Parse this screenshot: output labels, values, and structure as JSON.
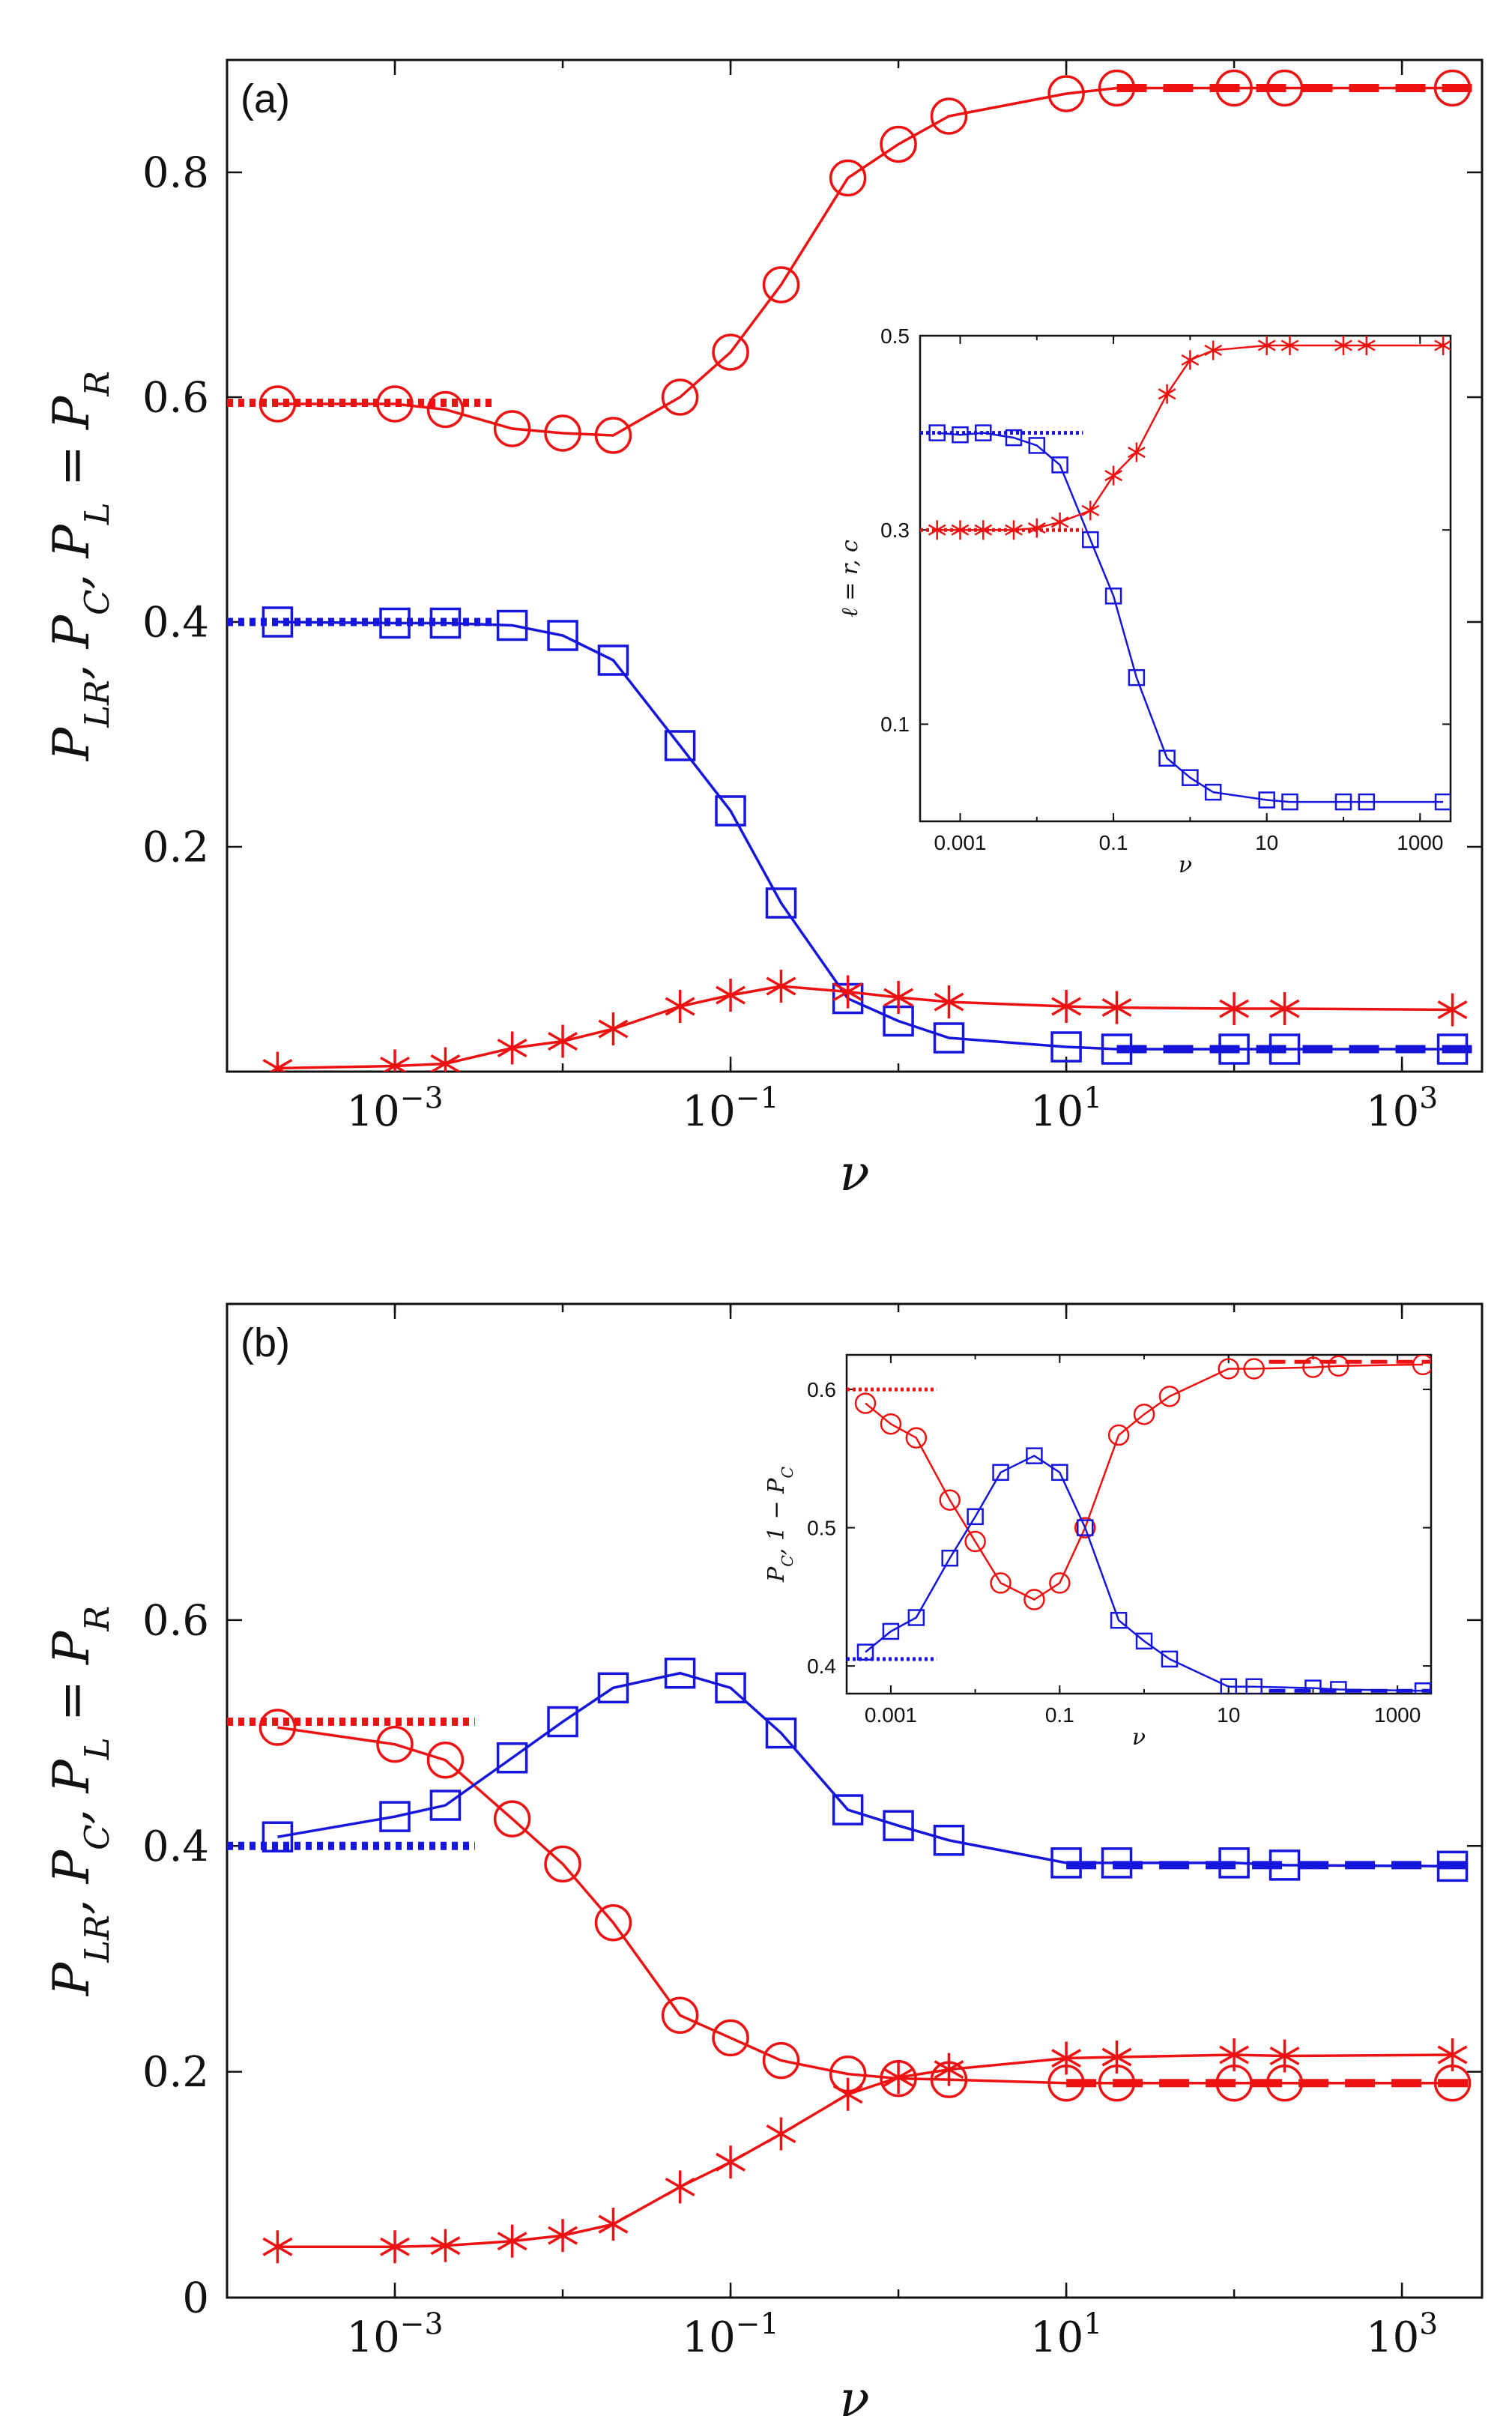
{
  "figure": {
    "background": "#ffffff"
  },
  "colors": {
    "red": "#ee1111",
    "blue": "#1515dd"
  },
  "chart_data": [
    {
      "type": "line",
      "panel_label": "(a)",
      "xlabel": "ν",
      "ylabel": "P_{LR}, P_C, P_L = P_R",
      "xscale": "log",
      "xlim": [
        0.0001,
        3000
      ],
      "ylim": [
        0,
        0.9
      ],
      "xticks": [
        0.001,
        0.1,
        10,
        1000
      ],
      "xtick_labels": [
        [
          "10",
          "−3"
        ],
        [
          "10",
          "−1"
        ],
        [
          "10",
          "1"
        ],
        [
          "10",
          "3"
        ]
      ],
      "yticks": [
        0.2,
        0.4,
        0.6,
        0.8
      ],
      "ytick_labels": [
        "0.2",
        "0.4",
        "0.6",
        "0.8"
      ],
      "series": [
        {
          "marker": "circle",
          "color": "red",
          "x": [
            0.0002,
            0.001,
            0.002,
            0.005,
            0.01,
            0.02,
            0.05,
            0.1,
            0.2,
            0.5,
            1,
            2,
            10,
            20,
            100,
            200,
            2000
          ],
          "y": [
            0.594,
            0.594,
            0.589,
            0.572,
            0.568,
            0.566,
            0.6,
            0.64,
            0.7,
            0.795,
            0.825,
            0.85,
            0.87,
            0.875,
            0.875,
            0.875,
            0.875
          ]
        },
        {
          "marker": "square",
          "color": "blue",
          "x": [
            0.0002,
            0.001,
            0.002,
            0.005,
            0.01,
            0.02,
            0.05,
            0.1,
            0.2,
            0.5,
            1,
            2,
            10,
            20,
            100,
            200,
            2000
          ],
          "y": [
            0.4,
            0.399,
            0.399,
            0.397,
            0.388,
            0.366,
            0.29,
            0.232,
            0.15,
            0.065,
            0.045,
            0.03,
            0.022,
            0.02,
            0.02,
            0.02,
            0.02
          ]
        },
        {
          "marker": "star",
          "color": "red",
          "x": [
            0.0002,
            0.001,
            0.002,
            0.005,
            0.01,
            0.02,
            0.05,
            0.1,
            0.2,
            0.5,
            1,
            2,
            10,
            20,
            100,
            200,
            2000
          ],
          "y": [
            0.003,
            0.005,
            0.007,
            0.021,
            0.027,
            0.038,
            0.058,
            0.068,
            0.076,
            0.071,
            0.066,
            0.062,
            0.058,
            0.057,
            0.056,
            0.056,
            0.055
          ]
        }
      ],
      "asymptotes": [
        {
          "color": "red",
          "style": "dotted",
          "y": 0.595,
          "x_range": [
            0.0001,
            0.004
          ]
        },
        {
          "color": "blue",
          "style": "dotted",
          "y": 0.4,
          "x_range": [
            0.0001,
            0.004
          ]
        },
        {
          "color": "red",
          "style": "dashed",
          "y": 0.875,
          "x_range": [
            20,
            3000
          ]
        },
        {
          "color": "blue",
          "style": "dashed",
          "y": 0.02,
          "x_range": [
            20,
            3000
          ]
        }
      ],
      "inset": {
        "xlabel": "ν",
        "ylabel": "ℓ = r, c",
        "xscale": "log",
        "xlim": [
          0.0003,
          2500
        ],
        "ylim": [
          0,
          0.5
        ],
        "xticks": [
          0.001,
          0.1,
          10,
          1000
        ],
        "xtick_labels": [
          "0.001",
          "0.1",
          "10",
          "1000"
        ],
        "yticks": [
          0.1,
          0.3,
          0.5
        ],
        "ytick_labels": [
          "0.1",
          "0.3",
          "0.5"
        ],
        "series": [
          {
            "marker": "square",
            "color": "blue",
            "x": [
              0.0005,
              0.001,
              0.002,
              0.005,
              0.01,
              0.02,
              0.05,
              0.1,
              0.2,
              0.5,
              1,
              2,
              10,
              20,
              100,
              200,
              2000
            ],
            "y": [
              0.4,
              0.398,
              0.4,
              0.395,
              0.387,
              0.367,
              0.29,
              0.232,
              0.148,
              0.065,
              0.045,
              0.03,
              0.022,
              0.02,
              0.02,
              0.02,
              0.02
            ]
          },
          {
            "marker": "star",
            "color": "red",
            "x": [
              0.0005,
              0.001,
              0.002,
              0.005,
              0.01,
              0.02,
              0.05,
              0.1,
              0.2,
              0.5,
              1,
              2,
              10,
              20,
              100,
              200,
              2000
            ],
            "y": [
              0.3,
              0.3,
              0.3,
              0.3,
              0.302,
              0.308,
              0.32,
              0.356,
              0.38,
              0.44,
              0.475,
              0.485,
              0.49,
              0.49,
              0.49,
              0.49,
              0.49
            ]
          }
        ],
        "asymptotes": [
          {
            "color": "blue",
            "style": "dotted",
            "y": 0.4,
            "x_range": [
              0.0003,
              0.04
            ]
          },
          {
            "color": "red",
            "style": "dotted",
            "y": 0.3,
            "x_range": [
              0.0003,
              0.04
            ]
          }
        ]
      }
    },
    {
      "type": "line",
      "panel_label": "(b)",
      "xlabel": "ν",
      "ylabel": "P_{LR}, P_C, P_L = P_R",
      "xscale": "log",
      "xlim": [
        0.0001,
        3000
      ],
      "ylim": [
        0,
        0.88
      ],
      "xticks": [
        0.001,
        0.1,
        10,
        1000
      ],
      "xtick_labels": [
        [
          "10",
          "−3"
        ],
        [
          "10",
          "−1"
        ],
        [
          "10",
          "1"
        ],
        [
          "10",
          "3"
        ]
      ],
      "yticks": [
        0,
        0.2,
        0.4,
        0.6
      ],
      "ytick_labels": [
        "0",
        "0.2",
        "0.4",
        "0.6"
      ],
      "series": [
        {
          "marker": "circle",
          "color": "red",
          "x": [
            0.0002,
            0.001,
            0.002,
            0.005,
            0.01,
            0.02,
            0.05,
            0.1,
            0.2,
            0.5,
            1,
            2,
            10,
            20,
            100,
            200,
            2000
          ],
          "y": [
            0.505,
            0.49,
            0.476,
            0.424,
            0.384,
            0.332,
            0.25,
            0.23,
            0.21,
            0.198,
            0.194,
            0.193,
            0.19,
            0.19,
            0.19,
            0.19,
            0.19
          ]
        },
        {
          "marker": "square",
          "color": "blue",
          "x": [
            0.0002,
            0.001,
            0.002,
            0.005,
            0.01,
            0.02,
            0.05,
            0.1,
            0.2,
            0.5,
            1,
            2,
            10,
            20,
            100,
            200,
            2000
          ],
          "y": [
            0.408,
            0.426,
            0.436,
            0.478,
            0.51,
            0.54,
            0.553,
            0.54,
            0.5,
            0.432,
            0.418,
            0.405,
            0.385,
            0.385,
            0.385,
            0.383,
            0.382
          ]
        },
        {
          "marker": "star",
          "color": "red",
          "x": [
            0.0002,
            0.001,
            0.002,
            0.005,
            0.01,
            0.02,
            0.05,
            0.1,
            0.2,
            0.5,
            1,
            2,
            10,
            20,
            100,
            200,
            2000
          ],
          "y": [
            0.045,
            0.045,
            0.046,
            0.05,
            0.055,
            0.065,
            0.098,
            0.12,
            0.145,
            0.18,
            0.195,
            0.202,
            0.212,
            0.213,
            0.215,
            0.214,
            0.215
          ]
        }
      ],
      "asymptotes": [
        {
          "color": "red",
          "style": "dotted",
          "y": 0.51,
          "x_range": [
            0.0001,
            0.003
          ]
        },
        {
          "color": "blue",
          "style": "dotted",
          "y": 0.4,
          "x_range": [
            0.0001,
            0.003
          ]
        },
        {
          "color": "red",
          "style": "dashed",
          "y": 0.19,
          "x_range": [
            10,
            3000
          ]
        },
        {
          "color": "blue",
          "style": "dashed",
          "y": 0.383,
          "x_range": [
            10,
            3000
          ]
        }
      ],
      "inset": {
        "xlabel": "ν",
        "ylabel": "P_C, 1 − P_C",
        "xscale": "log",
        "xlim": [
          0.0003,
          2500
        ],
        "ylim": [
          0.38,
          0.625
        ],
        "xticks": [
          0.001,
          0.1,
          10,
          1000
        ],
        "xtick_labels": [
          "0.001",
          "0.1",
          "10",
          "1000"
        ],
        "yticks": [
          0.4,
          0.5,
          0.6
        ],
        "ytick_labels": [
          "0.4",
          "0.5",
          "0.6"
        ],
        "series": [
          {
            "marker": "circle",
            "color": "red",
            "x": [
              0.0005,
              0.001,
              0.002,
              0.005,
              0.01,
              0.02,
              0.05,
              0.1,
              0.2,
              0.5,
              1,
              2,
              10,
              20,
              100,
              200,
              2000
            ],
            "y": [
              0.59,
              0.575,
              0.565,
              0.52,
              0.49,
              0.46,
              0.448,
              0.46,
              0.5,
              0.567,
              0.582,
              0.595,
              0.615,
              0.615,
              0.616,
              0.617,
              0.618
            ]
          },
          {
            "marker": "square",
            "color": "blue",
            "x": [
              0.0005,
              0.001,
              0.002,
              0.005,
              0.01,
              0.02,
              0.05,
              0.1,
              0.2,
              0.5,
              1,
              2,
              10,
              20,
              100,
              200,
              2000
            ],
            "y": [
              0.41,
              0.425,
              0.435,
              0.478,
              0.508,
              0.54,
              0.552,
              0.54,
              0.5,
              0.433,
              0.418,
              0.405,
              0.385,
              0.385,
              0.384,
              0.383,
              0.382
            ]
          }
        ],
        "asymptotes": [
          {
            "color": "red",
            "style": "dotted",
            "y": 0.6,
            "x_range": [
              0.0003,
              0.0035
            ]
          },
          {
            "color": "blue",
            "style": "dotted",
            "y": 0.405,
            "x_range": [
              0.0003,
              0.0035
            ]
          },
          {
            "color": "red",
            "style": "dashed",
            "y": 0.62,
            "x_range": [
              30,
              2500
            ]
          },
          {
            "color": "blue",
            "style": "dashed",
            "y": 0.382,
            "x_range": [
              30,
              2500
            ]
          }
        ]
      }
    }
  ]
}
